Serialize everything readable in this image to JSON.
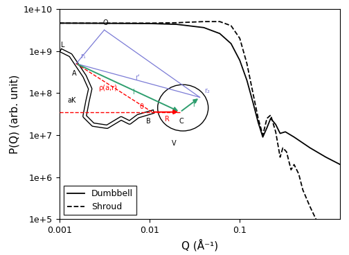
{
  "chart_data": {
    "type": "line",
    "x_label": "Q (Å⁻¹)",
    "y_label": "P(Q) (arb. unit)",
    "log": true,
    "xlim": [
      0.001,
      1.3
    ],
    "ylim": [
      100000,
      10000000000
    ],
    "xticks": [
      0.001,
      0.01,
      0.1
    ],
    "yticks": [
      {
        "value": 100000,
        "label": "1e+5"
      },
      {
        "value": 1000000,
        "label": "1e+6"
      },
      {
        "value": 10000000,
        "label": "1e+7"
      },
      {
        "value": 100000000,
        "label": "1e+8"
      },
      {
        "value": 1000000000,
        "label": "1e+9"
      },
      {
        "value": 10000000000,
        "label": "1e+10"
      }
    ],
    "legend": "lower left",
    "series": [
      {
        "name": "Dumbbell",
        "color": "#000000",
        "line_style": "solid",
        "x": [
          0.001,
          0.01,
          0.02,
          0.04,
          0.06,
          0.08,
          0.1,
          0.12,
          0.14,
          0.16,
          0.18,
          0.2,
          0.22,
          0.25,
          0.28,
          0.32,
          0.4,
          0.6,
          0.9,
          1.3
        ],
        "values": [
          4600000000,
          4500000000,
          4300000000,
          3600000000,
          2600000000,
          1500000000,
          600000000,
          200000000,
          60000000,
          20000000,
          9000000,
          15000000,
          25000000,
          18000000,
          11000000,
          12000000,
          9000000,
          5000000,
          3000000,
          2000000
        ]
      },
      {
        "name": "Shroud",
        "color": "#000000",
        "line_style": "dashed",
        "x": [
          0.001,
          0.01,
          0.02,
          0.04,
          0.06,
          0.08,
          0.1,
          0.12,
          0.14,
          0.16,
          0.18,
          0.2,
          0.22,
          0.25,
          0.28,
          0.3,
          0.33,
          0.37,
          0.4,
          0.45,
          0.5,
          0.6,
          0.7
        ],
        "values": [
          4600000000,
          4600000000,
          4700000000,
          5000000000,
          5000000000,
          4000000000,
          2000000000,
          500000000,
          100000000,
          25000000,
          10000000,
          25000000,
          30000000,
          12000000,
          3000000,
          5000000,
          4000000,
          1500000,
          2000000,
          1200000,
          500000,
          200000,
          100000
        ]
      }
    ]
  },
  "inset": {
    "labels": [
      "L",
      "A",
      "O",
      "r₁",
      "r'",
      "l",
      "aK",
      "ρ(a,r)",
      "θ",
      "B",
      "R",
      "C",
      "r",
      "r₂",
      "V"
    ]
  }
}
